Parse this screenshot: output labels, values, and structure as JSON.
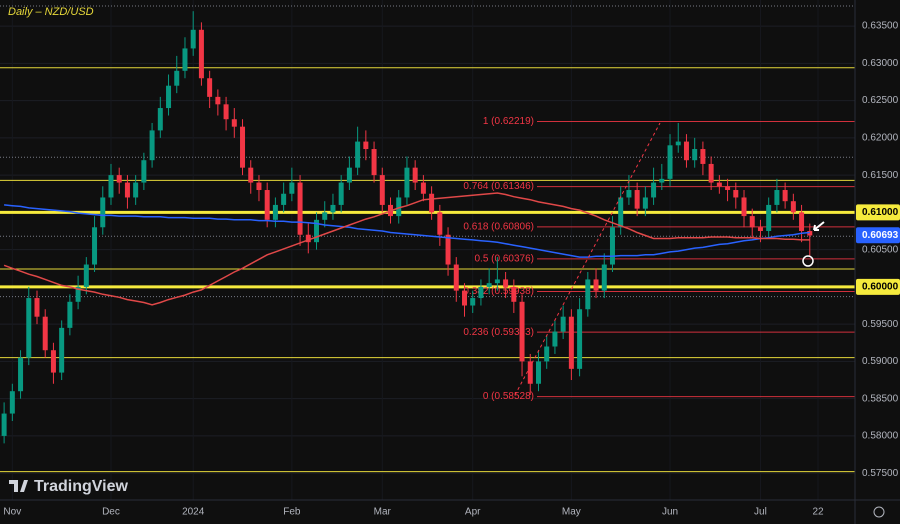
{
  "chart_data": {
    "type": "candlestick",
    "title": "Daily – NZD/USD",
    "categories": [
      null,
      "Nov",
      null,
      null,
      null,
      null,
      null,
      null,
      null,
      null,
      null,
      null,
      null,
      "Dec",
      null,
      null,
      null,
      null,
      null,
      null,
      null,
      null,
      null,
      "2024",
      null,
      null,
      null,
      null,
      null,
      null,
      null,
      null,
      null,
      null,
      null,
      "Feb",
      null,
      null,
      null,
      null,
      null,
      null,
      null,
      null,
      null,
      null,
      "Mar",
      null,
      null,
      null,
      null,
      null,
      null,
      null,
      null,
      null,
      null,
      "Apr",
      null,
      null,
      null,
      null,
      null,
      null,
      null,
      null,
      null,
      null,
      null,
      "May",
      null,
      null,
      null,
      null,
      null,
      null,
      null,
      null,
      null,
      null,
      null,
      "Jun",
      null,
      null,
      null,
      null,
      null,
      null,
      null,
      null,
      null,
      null,
      "Jul",
      null,
      null,
      null,
      null,
      null,
      null,
      "22",
      null,
      null,
      null,
      null
    ],
    "open": [
      0.58,
      0.583,
      0.586,
      0.5905,
      0.5985,
      0.596,
      0.5915,
      0.5885,
      0.5945,
      0.598,
      0.6,
      0.603,
      0.608,
      0.612,
      0.615,
      0.614,
      0.612,
      0.614,
      0.617,
      0.621,
      0.624,
      0.627,
      0.629,
      0.632,
      0.6345,
      0.628,
      0.6255,
      0.6245,
      0.6225,
      0.6215,
      0.616,
      0.614,
      0.613,
      0.609,
      0.611,
      0.6125,
      0.614,
      0.607,
      0.606,
      0.609,
      0.61,
      0.611,
      0.614,
      0.616,
      0.6195,
      0.6185,
      0.615,
      0.611,
      0.6095,
      0.612,
      0.616,
      0.614,
      0.6125,
      0.61,
      0.607,
      0.603,
      0.5995,
      0.5975,
      0.5985,
      0.6,
      0.6005,
      0.601,
      0.6,
      0.598,
      0.59,
      0.587,
      0.59,
      0.592,
      0.594,
      0.596,
      0.589,
      0.597,
      0.601,
      0.5995,
      0.603,
      0.608,
      0.612,
      0.613,
      0.6105,
      0.612,
      0.614,
      0.6145,
      0.619,
      0.6195,
      0.617,
      0.6185,
      0.6165,
      0.614,
      0.6135,
      0.613,
      0.612,
      0.6095,
      0.608,
      0.6075,
      0.611,
      0.613,
      0.6115,
      0.61,
      0.6075,
      null,
      null,
      null,
      null,
      null
    ],
    "high": [
      0.5845,
      0.587,
      0.5915,
      0.6,
      0.5995,
      0.597,
      0.5925,
      0.5955,
      0.599,
      0.6015,
      0.604,
      0.6095,
      0.6135,
      0.6165,
      0.616,
      0.615,
      0.615,
      0.618,
      0.622,
      0.6255,
      0.6285,
      0.631,
      0.6335,
      0.637,
      0.6355,
      0.629,
      0.6265,
      0.6255,
      0.624,
      0.6225,
      0.617,
      0.615,
      0.614,
      0.612,
      0.614,
      0.616,
      0.615,
      0.6085,
      0.61,
      0.6115,
      0.6125,
      0.615,
      0.6175,
      0.6215,
      0.621,
      0.6195,
      0.616,
      0.612,
      0.613,
      0.6175,
      0.617,
      0.615,
      0.6135,
      0.611,
      0.608,
      0.604,
      0.6005,
      0.5995,
      0.601,
      0.6025,
      0.604,
      0.602,
      0.601,
      0.599,
      0.591,
      0.5915,
      0.5935,
      0.5955,
      0.5975,
      0.597,
      0.5985,
      0.602,
      0.6025,
      0.6045,
      0.6095,
      0.6135,
      0.615,
      0.614,
      0.6135,
      0.616,
      0.6165,
      0.6205,
      0.622,
      0.6205,
      0.62,
      0.6195,
      0.6175,
      0.615,
      0.6145,
      0.614,
      0.613,
      0.6105,
      0.609,
      0.612,
      0.6145,
      0.614,
      0.6125,
      0.611,
      0.6085,
      null,
      null,
      null,
      null,
      null
    ],
    "low": [
      0.579,
      0.582,
      0.585,
      0.5895,
      0.595,
      0.5905,
      0.587,
      0.5875,
      0.5935,
      0.597,
      0.599,
      0.602,
      0.607,
      0.611,
      0.6125,
      0.6105,
      0.611,
      0.613,
      0.616,
      0.62,
      0.623,
      0.626,
      0.628,
      0.631,
      0.627,
      0.624,
      0.623,
      0.621,
      0.62,
      0.615,
      0.6125,
      0.6115,
      0.608,
      0.608,
      0.61,
      0.6115,
      0.6055,
      0.6045,
      0.605,
      0.608,
      0.609,
      0.61,
      0.613,
      0.615,
      0.617,
      0.614,
      0.61,
      0.6085,
      0.6085,
      0.611,
      0.613,
      0.6115,
      0.609,
      0.6055,
      0.6015,
      0.598,
      0.596,
      0.5965,
      0.5975,
      0.599,
      0.5995,
      0.5985,
      0.5965,
      0.588,
      0.5855,
      0.586,
      0.589,
      0.591,
      0.593,
      0.5875,
      0.588,
      0.596,
      0.5985,
      0.5985,
      0.602,
      0.607,
      0.611,
      0.6095,
      0.6095,
      0.611,
      0.613,
      0.6135,
      0.618,
      0.616,
      0.616,
      0.615,
      0.613,
      0.6125,
      0.6115,
      0.6105,
      0.608,
      0.6065,
      0.606,
      0.6065,
      0.61,
      0.6105,
      0.609,
      0.606,
      0.604,
      null,
      null,
      null,
      null,
      null
    ],
    "close": [
      0.583,
      0.586,
      0.5905,
      0.5985,
      0.596,
      0.5915,
      0.5885,
      0.5945,
      0.598,
      0.6,
      0.603,
      0.608,
      0.612,
      0.615,
      0.614,
      0.612,
      0.614,
      0.617,
      0.621,
      0.624,
      0.627,
      0.629,
      0.632,
      0.6345,
      0.628,
      0.6255,
      0.6245,
      0.6225,
      0.6215,
      0.616,
      0.614,
      0.613,
      0.609,
      0.611,
      0.6125,
      0.614,
      0.607,
      0.606,
      0.609,
      0.61,
      0.611,
      0.614,
      0.616,
      0.6195,
      0.6185,
      0.615,
      0.611,
      0.6095,
      0.612,
      0.616,
      0.614,
      0.6125,
      0.61,
      0.607,
      0.603,
      0.5995,
      0.5975,
      0.5985,
      0.6,
      0.6005,
      0.601,
      0.6,
      0.598,
      0.59,
      0.587,
      0.59,
      0.592,
      0.594,
      0.596,
      0.589,
      0.597,
      0.601,
      0.5995,
      0.603,
      0.608,
      0.612,
      0.613,
      0.6105,
      0.612,
      0.614,
      0.6145,
      0.619,
      0.6195,
      0.617,
      0.6185,
      0.6165,
      0.614,
      0.6135,
      0.613,
      0.612,
      0.6095,
      0.608,
      0.6075,
      0.611,
      0.613,
      0.6115,
      0.61,
      0.6075,
      0.6069,
      null,
      null,
      null,
      null,
      null
    ],
    "up_color": "#089981",
    "down_color": "#f23645",
    "series": [
      {
        "color": "#2962ff",
        "values": [
          0.611,
          0.6109,
          0.6108,
          0.6106,
          0.6105,
          0.6104,
          0.6103,
          0.6102,
          0.6101,
          0.6099,
          0.6098,
          0.6097,
          0.6096,
          0.6096,
          0.6095,
          0.6095,
          0.6095,
          0.6094,
          0.6094,
          0.6094,
          0.6093,
          0.6093,
          0.6093,
          0.6092,
          0.6092,
          0.6092,
          0.6091,
          0.6091,
          0.609,
          0.609,
          0.609,
          0.6089,
          0.6089,
          0.6088,
          0.6088,
          0.6087,
          0.6087,
          0.6086,
          0.6085,
          0.6083,
          0.6082,
          0.6081,
          0.608,
          0.6078,
          0.6077,
          0.6076,
          0.6075,
          0.6073,
          0.6072,
          0.6071,
          0.607,
          0.6069,
          0.6068,
          0.6067,
          0.6066,
          0.6065,
          0.6064,
          0.6063,
          0.6062,
          0.6061,
          0.606,
          0.6058,
          0.6056,
          0.6054,
          0.6052,
          0.605,
          0.6048,
          0.6046,
          0.6044,
          0.6042,
          0.604,
          0.604,
          0.6041,
          0.6041,
          0.6041,
          0.6042,
          0.6042,
          0.6042,
          0.6043,
          0.6043,
          0.6045,
          0.6047,
          0.6048,
          0.605,
          0.6052,
          0.6053,
          0.6055,
          0.6057,
          0.6058,
          0.606,
          0.6062,
          0.6063,
          0.6065,
          0.6066,
          0.6068,
          0.6069,
          0.607,
          0.6072,
          0.6073,
          null,
          null,
          null,
          null,
          null
        ]
      },
      {
        "color": "#e04848",
        "values": [
          0.6029,
          0.6025,
          0.6021,
          0.6017,
          0.6014,
          0.601,
          0.6006,
          0.6002,
          0.6,
          0.5997,
          0.5995,
          0.5993,
          0.599,
          0.5988,
          0.5986,
          0.5983,
          0.5981,
          0.5979,
          0.5976,
          0.5979,
          0.5983,
          0.5986,
          0.5989,
          0.5993,
          0.5996,
          0.6002,
          0.6008,
          0.6014,
          0.602,
          0.6025,
          0.6031,
          0.6037,
          0.6043,
          0.6047,
          0.6051,
          0.6055,
          0.6059,
          0.6063,
          0.6067,
          0.6071,
          0.6075,
          0.6079,
          0.6083,
          0.6087,
          0.6091,
          0.6094,
          0.6098,
          0.6102,
          0.6106,
          0.6109,
          0.6113,
          0.6117,
          0.6118,
          0.6119,
          0.612,
          0.6121,
          0.6122,
          0.6123,
          0.6124,
          0.6125,
          0.6126,
          0.6124,
          0.6121,
          0.6119,
          0.6117,
          0.6114,
          0.6112,
          0.611,
          0.6108,
          0.6105,
          0.6103,
          0.6099,
          0.6095,
          0.609,
          0.6086,
          0.6082,
          0.6078,
          0.6073,
          0.6069,
          0.6065,
          0.6065,
          0.6065,
          0.6066,
          0.6066,
          0.6066,
          0.6066,
          0.6067,
          0.6067,
          0.6067,
          0.6066,
          0.6066,
          0.6066,
          0.6065,
          0.6065,
          0.6065,
          0.6064,
          0.6064,
          0.6063,
          0.6063,
          null,
          null,
          null,
          null,
          null
        ]
      }
    ],
    "levels": [
      {
        "value": 0.6377,
        "color": "#787b86",
        "width": 1,
        "dash": true
      },
      {
        "value": 0.6294,
        "color": "#e6d83a",
        "width": 1
      },
      {
        "value": 0.6174,
        "color": "#787b86",
        "width": 1,
        "dash": true
      },
      {
        "value": 0.6143,
        "color": "#e6d83a",
        "width": 1
      },
      {
        "value": 0.61,
        "color": "#f5ea3d",
        "width": 3
      },
      {
        "value": 0.6068,
        "color": "#787b86",
        "width": 1,
        "dash": true
      },
      {
        "value": 0.6024,
        "color": "#e6d83a",
        "width": 1
      },
      {
        "value": 0.6,
        "color": "#f5ea3d",
        "width": 3
      },
      {
        "value": 0.5987,
        "color": "#787b86",
        "width": 1,
        "dash": true
      },
      {
        "value": 0.5905,
        "color": "#e6d83a",
        "width": 1
      },
      {
        "value": 0.5752,
        "color": "#e6d83a",
        "width": 1
      }
    ],
    "fib": [
      {
        "value": 0.62219,
        "label": "1 (0.62219)"
      },
      {
        "value": 0.61346,
        "label": "0.764 (0.61346)"
      },
      {
        "value": 0.60806,
        "label": "0.618 (0.60806)"
      },
      {
        "value": 0.60376,
        "label": "0.5 (0.60376)"
      },
      {
        "value": 0.59938,
        "label": "0.382 (0.59938)"
      },
      {
        "value": 0.59393,
        "label": "0.236 (0.59393)"
      },
      {
        "value": 0.58528,
        "label": "0 (0.58528)"
      }
    ],
    "fib_color": "#f23645",
    "ylim": [
      0.5714,
      0.6385
    ],
    "yticks": [
      {
        "value": 0.635,
        "label": "0.63500"
      },
      {
        "value": 0.63,
        "label": "0.63000"
      },
      {
        "value": 0.625,
        "label": "0.62500"
      },
      {
        "value": 0.62,
        "label": "0.62000"
      },
      {
        "value": 0.615,
        "label": "0.61500"
      },
      {
        "value": 0.61,
        "label": "0.61000",
        "highlight": true
      },
      {
        "value": 0.605,
        "label": "0.60500"
      },
      {
        "value": 0.6,
        "label": "0.60000",
        "highlight": true
      },
      {
        "value": 0.595,
        "label": "0.59500"
      },
      {
        "value": 0.59,
        "label": "0.59000"
      },
      {
        "value": 0.585,
        "label": "0.58500"
      },
      {
        "value": 0.58,
        "label": "0.58000"
      },
      {
        "value": 0.575,
        "label": "0.57500"
      }
    ],
    "price_tag": {
      "value": 0.60693,
      "label": "0.60693"
    },
    "grid": true
  },
  "watermark": "TradingView"
}
